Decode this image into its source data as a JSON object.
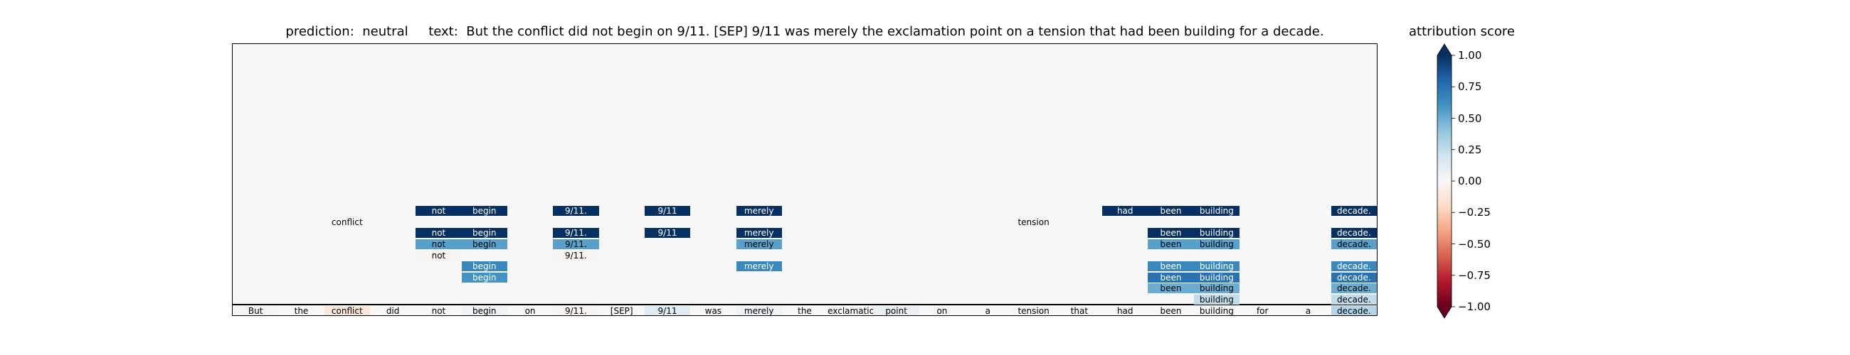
{
  "chart_data": {
    "type": "heatmap",
    "title_parts": {
      "prediction_label": "prediction:",
      "prediction_value": "neutral",
      "text_label": "text:",
      "text_value": "But the conflict did not begin on 9/11. [SEP] 9/11 was merely the exclamation point on a tension that had been building for a decade."
    },
    "tokens": [
      "But",
      "the",
      "conflict",
      "did",
      "not",
      "begin",
      "on",
      "9/11.",
      "[SEP]",
      "9/11",
      "was",
      "merely",
      "the",
      "exclamation",
      "point",
      "on",
      "a",
      "tension",
      "that",
      "had",
      "been",
      "building",
      "for",
      "a",
      "decade."
    ],
    "base_scores": [
      0.02,
      0.0,
      -0.12,
      0.0,
      0.0,
      0.05,
      0.0,
      -0.02,
      0.0,
      0.12,
      0.0,
      0.05,
      0.0,
      0.0,
      0.08,
      0.0,
      0.0,
      0.0,
      0.0,
      0.0,
      0.0,
      0.0,
      0.0,
      0.0,
      0.3
    ],
    "layer_cells": [
      {
        "layer": 9,
        "token_index": 4,
        "token": "not",
        "score": 1.0
      },
      {
        "layer": 9,
        "token_index": 5,
        "token": "begin",
        "score": 1.0
      },
      {
        "layer": 9,
        "token_index": 7,
        "token": "9/11.",
        "score": 1.0
      },
      {
        "layer": 9,
        "token_index": 9,
        "token": "9/11",
        "score": 1.0
      },
      {
        "layer": 9,
        "token_index": 11,
        "token": "merely",
        "score": 1.0
      },
      {
        "layer": 9,
        "token_index": 19,
        "token": "had",
        "score": 1.0
      },
      {
        "layer": 9,
        "token_index": 20,
        "token": "been",
        "score": 1.0
      },
      {
        "layer": 9,
        "token_index": 21,
        "token": "building",
        "score": 1.0
      },
      {
        "layer": 9,
        "token_index": 24,
        "token": "decade.",
        "score": 1.0
      },
      {
        "layer": 8,
        "token_index": 2,
        "token": "conflict",
        "score": 0.0
      },
      {
        "layer": 8,
        "token_index": 17,
        "token": "tension",
        "score": 0.0
      },
      {
        "layer": 7,
        "token_index": 4,
        "token": "not",
        "score": 1.0
      },
      {
        "layer": 7,
        "token_index": 5,
        "token": "begin",
        "score": 1.0
      },
      {
        "layer": 7,
        "token_index": 7,
        "token": "9/11.",
        "score": 1.0
      },
      {
        "layer": 7,
        "token_index": 9,
        "token": "9/11",
        "score": 1.0
      },
      {
        "layer": 7,
        "token_index": 11,
        "token": "merely",
        "score": 1.0
      },
      {
        "layer": 7,
        "token_index": 20,
        "token": "been",
        "score": 1.0
      },
      {
        "layer": 7,
        "token_index": 21,
        "token": "building",
        "score": 1.0
      },
      {
        "layer": 7,
        "token_index": 24,
        "token": "decade.",
        "score": 1.0
      },
      {
        "layer": 6,
        "token_index": 4,
        "token": "not",
        "score": 0.55
      },
      {
        "layer": 6,
        "token_index": 5,
        "token": "begin",
        "score": 0.55
      },
      {
        "layer": 6,
        "token_index": 7,
        "token": "9/11.",
        "score": 0.55
      },
      {
        "layer": 6,
        "token_index": 11,
        "token": "merely",
        "score": 0.55
      },
      {
        "layer": 6,
        "token_index": 20,
        "token": "been",
        "score": 0.55
      },
      {
        "layer": 6,
        "token_index": 21,
        "token": "building",
        "score": 0.55
      },
      {
        "layer": 6,
        "token_index": 24,
        "token": "decade.",
        "score": 0.55
      },
      {
        "layer": 5,
        "token_index": 4,
        "token": "not",
        "score": -0.02
      },
      {
        "layer": 5,
        "token_index": 7,
        "token": "9/11.",
        "score": -0.02
      },
      {
        "layer": 4,
        "token_index": 5,
        "token": "begin",
        "score": 0.65
      },
      {
        "layer": 4,
        "token_index": 11,
        "token": "merely",
        "score": 0.65
      },
      {
        "layer": 4,
        "token_index": 20,
        "token": "been",
        "score": 0.65
      },
      {
        "layer": 4,
        "token_index": 21,
        "token": "building",
        "score": 0.65
      },
      {
        "layer": 4,
        "token_index": 24,
        "token": "decade.",
        "score": 0.65
      },
      {
        "layer": 3,
        "token_index": 5,
        "token": "begin",
        "score": 0.6
      },
      {
        "layer": 3,
        "token_index": 20,
        "token": "been",
        "score": 0.75
      },
      {
        "layer": 3,
        "token_index": 21,
        "token": "building",
        "score": 0.75
      },
      {
        "layer": 3,
        "token_index": 24,
        "token": "decade.",
        "score": 0.75
      },
      {
        "layer": 2,
        "token_index": 20,
        "token": "been",
        "score": 0.5
      },
      {
        "layer": 2,
        "token_index": 21,
        "token": "building",
        "score": 0.5
      },
      {
        "layer": 2,
        "token_index": 24,
        "token": "decade.",
        "score": 0.5
      },
      {
        "layer": 1,
        "token_index": 21,
        "token": "building",
        "score": 0.25
      },
      {
        "layer": 1,
        "token_index": 24,
        "token": "decade.",
        "score": 0.25
      }
    ],
    "colorbar": {
      "label": "attribution score",
      "range": [
        -1.0,
        1.0
      ],
      "ticks": [
        1.0,
        0.75,
        0.5,
        0.25,
        0.0,
        -0.25,
        -0.5,
        -0.75,
        -1.0
      ],
      "tick_labels": [
        "1.00",
        "0.75",
        "0.50",
        "0.25",
        "0.00",
        "−0.25",
        "−0.50",
        "−0.75",
        "−1.00"
      ],
      "colormap": "RdBu",
      "extend": "both"
    },
    "colors": {
      "positive_max": "#053061",
      "negative_max": "#67001f",
      "neutral": "#f7f7f7",
      "plot_background": "#f7f7f7"
    }
  }
}
